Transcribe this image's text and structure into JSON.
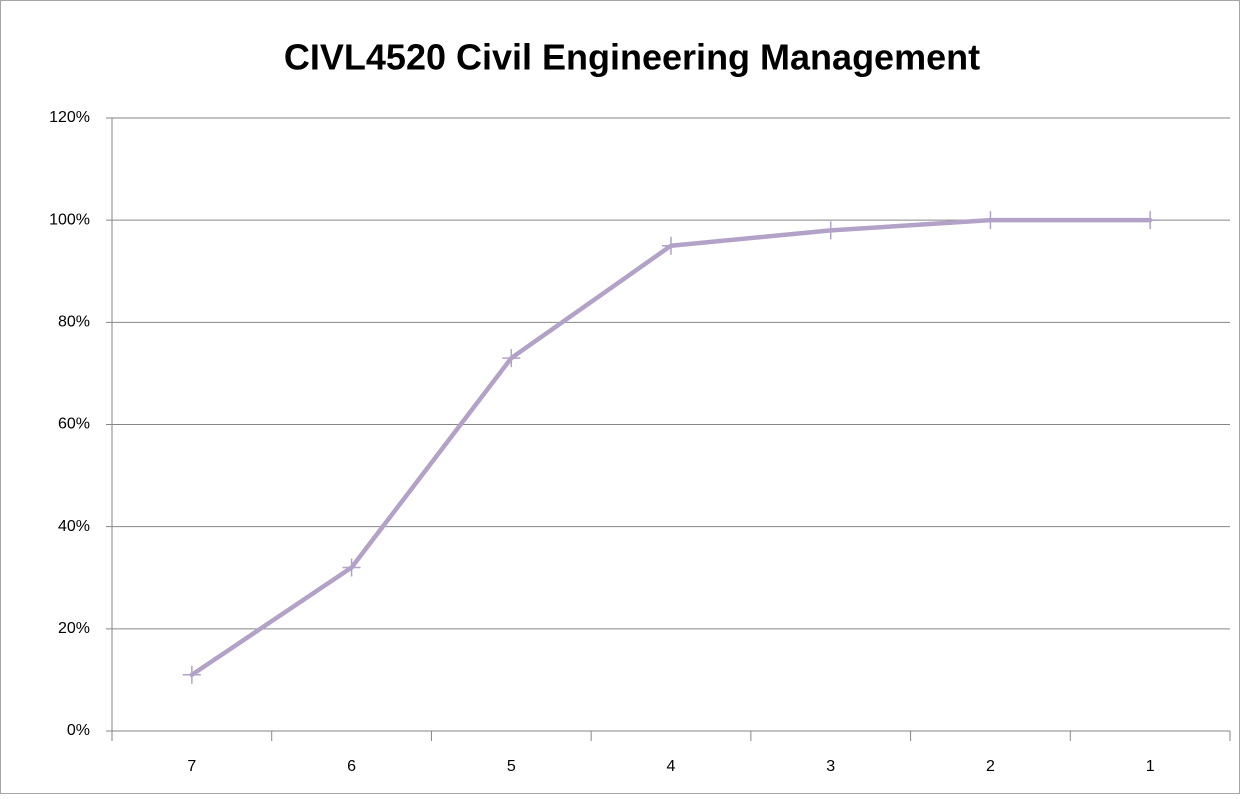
{
  "chart_data": {
    "type": "line",
    "title": "CIVL4520 Civil Engineering Management",
    "categories": [
      "7",
      "6",
      "5",
      "4",
      "3",
      "2",
      "1"
    ],
    "values": [
      11,
      32,
      73,
      95,
      98,
      100,
      100
    ],
    "color": "#b3a2c7",
    "ylim": [
      0,
      120
    ],
    "yticks": [
      {
        "value": 0,
        "label": "0%"
      },
      {
        "value": 20,
        "label": "20%"
      },
      {
        "value": 40,
        "label": "40%"
      },
      {
        "value": 60,
        "label": "60%"
      },
      {
        "value": 80,
        "label": "80%"
      },
      {
        "value": 100,
        "label": "100%"
      },
      {
        "value": 120,
        "label": "120%"
      }
    ],
    "grid": true,
    "markers": true
  }
}
